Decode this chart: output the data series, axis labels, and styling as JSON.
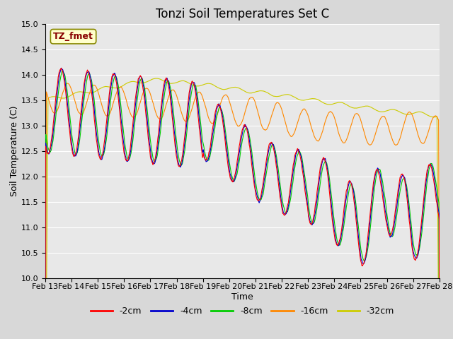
{
  "title": "Tonzi Soil Temperatures Set C",
  "xlabel": "Time",
  "ylabel": "Soil Temperature (C)",
  "ylim": [
    10.0,
    15.0
  ],
  "yticks": [
    10.0,
    10.5,
    11.0,
    11.5,
    12.0,
    12.5,
    13.0,
    13.5,
    14.0,
    14.5,
    15.0
  ],
  "xtick_labels": [
    "Feb 13",
    "Feb 14",
    "Feb 15",
    "Feb 16",
    "Feb 17",
    "Feb 18",
    "Feb 19",
    "Feb 20",
    "Feb 21",
    "Feb 22",
    "Feb 23",
    "Feb 24",
    "Feb 25",
    "Feb 26",
    "Feb 27",
    "Feb 28"
  ],
  "legend_labels": [
    "-2cm",
    "-4cm",
    "-8cm",
    "-16cm",
    "-32cm"
  ],
  "line_colors": [
    "#ff0000",
    "#0000cc",
    "#00cc00",
    "#ff8800",
    "#cccc00"
  ],
  "annotation_text": "TZ_fmet",
  "annotation_color": "#880000",
  "annotation_bg": "#ffffcc",
  "annotation_edge": "#888800",
  "bg_color": "#e8e8e8",
  "title_fontsize": 12,
  "axis_label_fontsize": 9,
  "tick_fontsize": 8
}
